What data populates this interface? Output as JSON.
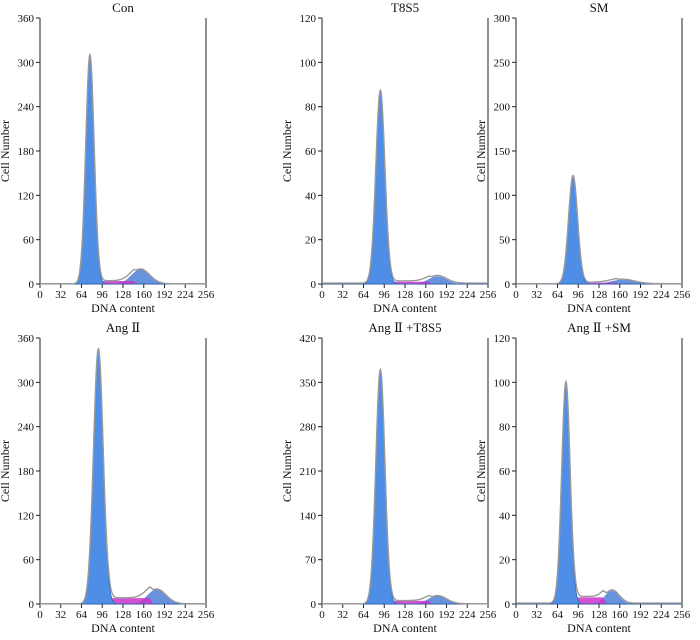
{
  "chart_data": [
    {
      "type": "histogram",
      "title": "Con",
      "xlabel": "DNA content",
      "ylabel": "Cell Number",
      "xlim": [
        0,
        256
      ],
      "ylim": [
        0,
        360
      ],
      "xticks": [
        "0",
        "32",
        "64",
        "96",
        "128",
        "160",
        "192",
        "224",
        "256"
      ],
      "yticks": [
        "0",
        "60",
        "120",
        "180",
        "240",
        "300",
        "360"
      ],
      "g1": {
        "mean": 77,
        "sd": 6.5,
        "height": 310
      },
      "g2": {
        "mean": 155,
        "sd": 14,
        "height": 20
      },
      "s": {
        "start": 82,
        "end": 150,
        "height": 4
      }
    },
    {
      "type": "histogram",
      "title": "T8S5",
      "xlabel": "DNA content",
      "ylabel": "Cell Number",
      "xlim": [
        0,
        256
      ],
      "ylim": [
        0,
        120
      ],
      "xticks": [
        "0",
        "32",
        "64",
        "96",
        "128",
        "160",
        "192",
        "224",
        "256"
      ],
      "yticks": [
        "0",
        "20",
        "40",
        "60",
        "80",
        "100",
        "120"
      ],
      "g1": {
        "mean": 90,
        "sd": 7,
        "height": 87
      },
      "g2": {
        "mean": 178,
        "sd": 14,
        "height": 3.5
      },
      "s": {
        "start": 98,
        "end": 170,
        "height": 1
      }
    },
    {
      "type": "histogram",
      "title": "SM",
      "xlabel": "DNA content",
      "ylabel": "Cell Number",
      "xlim": [
        0,
        256
      ],
      "ylim": [
        0,
        300
      ],
      "xticks": [
        "0",
        "32",
        "64",
        "96",
        "128",
        "160",
        "192",
        "224",
        "256"
      ],
      "yticks": [
        "0",
        "50",
        "100",
        "150",
        "200",
        "250",
        "300"
      ],
      "g1": {
        "mean": 88,
        "sd": 7,
        "height": 122
      },
      "g2": {
        "mean": 165,
        "sd": 18,
        "height": 5
      },
      "s": {
        "start": 96,
        "end": 160,
        "height": 1.5
      }
    },
    {
      "type": "histogram",
      "title": "Ang Ⅱ",
      "xlabel": "DNA content",
      "ylabel": "Cell Number",
      "xlim": [
        0,
        256
      ],
      "ylim": [
        0,
        360
      ],
      "xticks": [
        "0",
        "32",
        "64",
        "96",
        "128",
        "160",
        "192",
        "224",
        "256"
      ],
      "yticks": [
        "0",
        "60",
        "120",
        "180",
        "240",
        "300",
        "360"
      ],
      "g1": {
        "mean": 90,
        "sd": 7.5,
        "height": 345
      },
      "g2": {
        "mean": 180,
        "sd": 14,
        "height": 20
      },
      "s": {
        "start": 100,
        "end": 175,
        "height": 8
      }
    },
    {
      "type": "histogram",
      "title": "Ang Ⅱ +T8S5",
      "xlabel": "DNA content",
      "ylabel": "Cell Number",
      "xlim": [
        0,
        256
      ],
      "ylim": [
        0,
        420
      ],
      "xticks": [
        "0",
        "32",
        "64",
        "96",
        "128",
        "160",
        "192",
        "224",
        "256"
      ],
      "yticks": [
        "0",
        "70",
        "140",
        "210",
        "280",
        "350",
        "420"
      ],
      "g1": {
        "mean": 90,
        "sd": 7,
        "height": 370
      },
      "g2": {
        "mean": 178,
        "sd": 14,
        "height": 13
      },
      "s": {
        "start": 100,
        "end": 170,
        "height": 5
      }
    },
    {
      "type": "histogram",
      "title": "Ang Ⅱ +SM",
      "xlabel": "DNA content",
      "ylabel": "Cell Number",
      "xlim": [
        0,
        256
      ],
      "ylim": [
        0,
        120
      ],
      "xticks": [
        "0",
        "32",
        "64",
        "96",
        "128",
        "160",
        "192",
        "224",
        "256"
      ],
      "yticks": [
        "0",
        "20",
        "40",
        "60",
        "80",
        "100",
        "120"
      ],
      "g1": {
        "mean": 77,
        "sd": 6.5,
        "height": 100
      },
      "g2": {
        "mean": 148,
        "sd": 11,
        "height": 6
      },
      "s": {
        "start": 84,
        "end": 140,
        "height": 3
      }
    }
  ],
  "colors": {
    "g1_fill": "#4f8ee6",
    "g1_stroke": "#2f64b8",
    "g2_fill": "#4d7fd6",
    "s_fill": "#cc33cc",
    "envelope": "#9a9a9a",
    "axis": "#222222"
  }
}
